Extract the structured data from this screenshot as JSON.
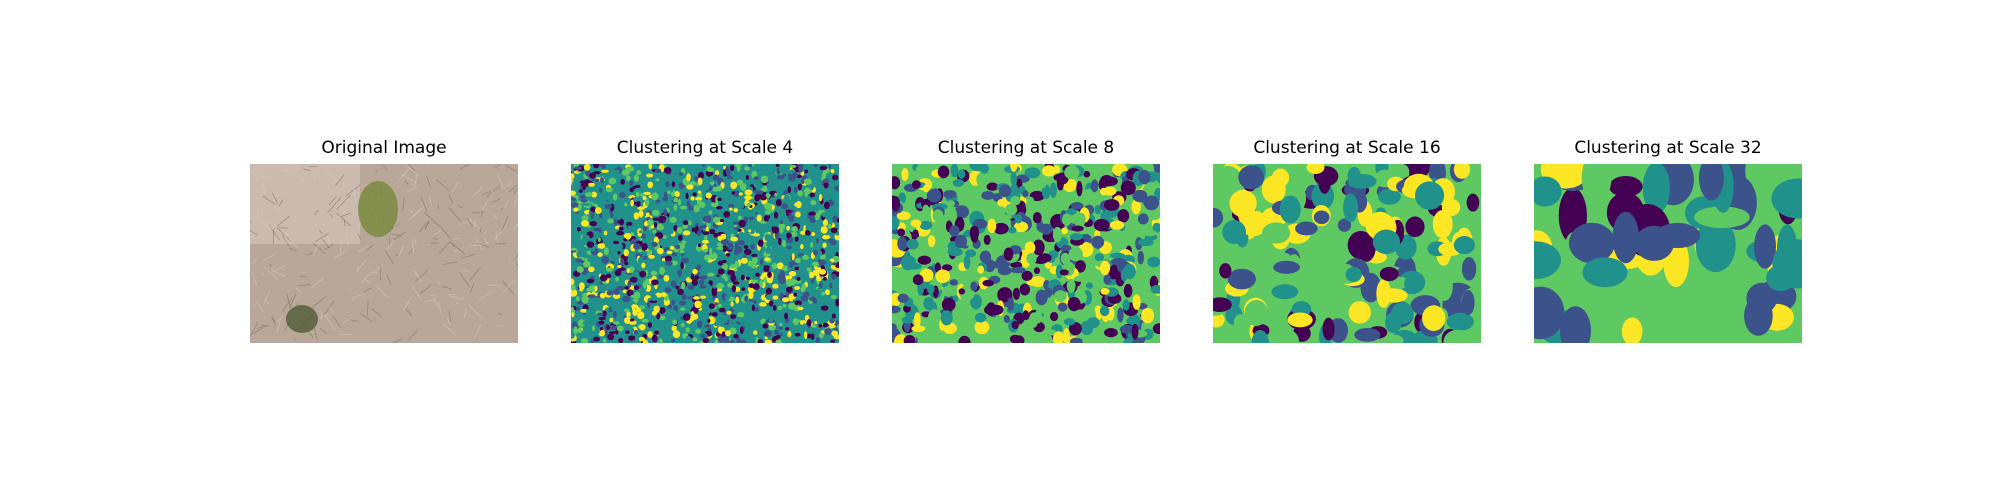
{
  "panels": [
    {
      "title": "Original Image",
      "kind": "photo"
    },
    {
      "title": "Clustering at Scale 4",
      "kind": "cluster",
      "scale": 4
    },
    {
      "title": "Clustering at Scale 8",
      "kind": "cluster",
      "scale": 8
    },
    {
      "title": "Clustering at Scale 16",
      "kind": "cluster",
      "scale": 16
    },
    {
      "title": "Clustering at Scale 32",
      "kind": "cluster",
      "scale": 32
    }
  ],
  "palette": [
    "#440154",
    "#3b528b",
    "#21918c",
    "#5ec962",
    "#fde725"
  ],
  "photo_colors": {
    "base": "#b9a89a",
    "light": "#d8cbc0",
    "dark": "#7c6e63",
    "green": "#7a8a40"
  }
}
